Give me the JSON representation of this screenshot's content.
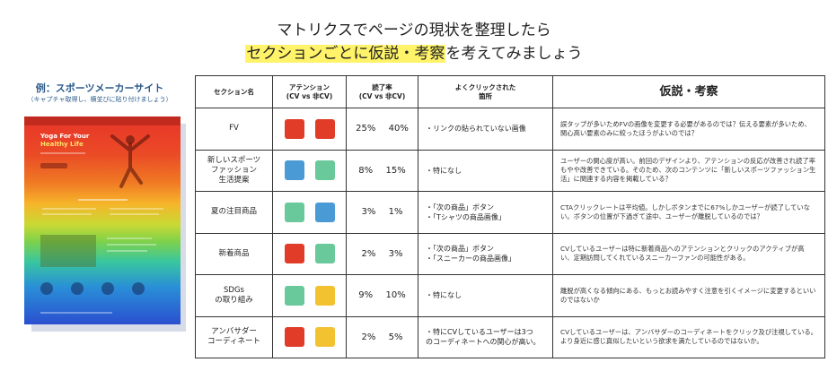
{
  "headline": {
    "line1": "マトリクスでページの現状を整理したら",
    "line2_highlight": "セクションごとに仮説・考察",
    "line2_rest": "を考えてみましょう"
  },
  "example": {
    "title": "例：スポーツメーカーサイト",
    "subtitle": "（キャプチャ取得し、横並びに貼り付けましょう）",
    "mock_texts": {
      "hero_line1": "Yoga For Your",
      "hero_line2": "Healthy Life"
    }
  },
  "colors": {
    "red": "#e03c28",
    "green": "#69c99a",
    "blue": "#4a9ad6",
    "yellow": "#f2c230",
    "highlight": "#fff36a"
  },
  "table": {
    "headers": {
      "section": "セクション名",
      "attention_line1": "アテンション",
      "attention_line2": "(CV vs 非CV)",
      "rate_line1": "読了率",
      "rate_line2": "(CV vs 非CV)",
      "click_line1": "よくクリックされた",
      "click_line2": "箇所",
      "hypothesis": "仮説・考察"
    },
    "rows": [
      {
        "section": [
          "FV"
        ],
        "attention": [
          "red",
          "red"
        ],
        "rate": "25%  40%",
        "clicks": [
          "・リンクの貼られていない画像"
        ],
        "hypothesis": "誤タップが多いためFVの画像を変更する必要があるのでは？伝える要素が多いため、関心高い要素のみに絞ったほうがよいのでは？"
      },
      {
        "section": [
          "新しいスポーツ",
          "ファッション",
          "生活提案"
        ],
        "attention": [
          "blue",
          "green"
        ],
        "rate": "8%  15%",
        "clicks": [
          "・特になし"
        ],
        "hypothesis": "ユーザーの関心度が高い。前回のデザインより、アテンションの反応が改善され読了率もやや改善できている。そのため、次のコンテンツに「新しいスポーツファッション生活」に関連する内容を掲載している？"
      },
      {
        "section": [
          "夏の注目商品"
        ],
        "attention": [
          "green",
          "blue"
        ],
        "rate": "3%  1%",
        "clicks": [
          "・「次の商品」ボタン",
          "・「Tシャツの商品画像」"
        ],
        "hypothesis": "CTAクリックレートは平均値。しかしボタンまでに67%しかユーザーが読了していない。ボタンの位置が下過ぎて途中、ユーザーが離脱しているのでは？"
      },
      {
        "section": [
          "新着商品"
        ],
        "attention": [
          "red",
          "green"
        ],
        "rate": "2%  3%",
        "clicks": [
          "・「次の商品」ボタン",
          "・「スニーカーの商品画像」"
        ],
        "hypothesis": "CVしているユーザーは特に新着商品へのアテンションとクリックのアクティブが高い、定期訪問してくれているスニーカーファンの可能性がある。"
      },
      {
        "section": [
          "SDGs",
          "の取り組み"
        ],
        "attention": [
          "green",
          "yellow"
        ],
        "rate": "9%  10%",
        "clicks": [
          "・特になし"
        ],
        "hypothesis": "離脱が高くなる傾向にある、もっとお読みやすく注意を引くイメージに変更するといいのではないか"
      },
      {
        "section": [
          "アンバサダー",
          "コーディネート"
        ],
        "attention": [
          "red",
          "yellow"
        ],
        "rate": "2%  5%",
        "clicks": [
          "・特にCVしているユーザーは3つ",
          "のコーディネートへの関心が高い。"
        ],
        "hypothesis": "CVしているユーザーは、アンバサダーのコーディネートをクリック及び注視している。より身近に感じ真似したいという欲求を満たしているのではないか。"
      }
    ]
  }
}
